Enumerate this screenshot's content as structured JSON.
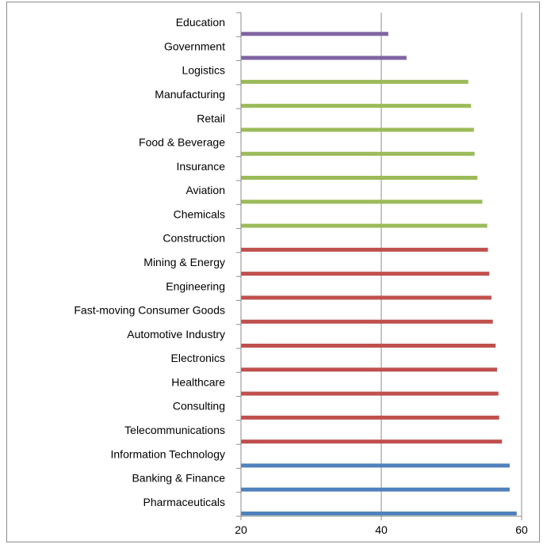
{
  "chart_data": {
    "type": "bar",
    "orientation": "horizontal",
    "title": "",
    "xlabel": "",
    "ylabel": "",
    "xlim": [
      20,
      60
    ],
    "x_ticks": [
      "20",
      "40",
      "60"
    ],
    "grid": "vertical lines at 40 and 60",
    "legend": "none",
    "categories": [
      "Education",
      "Government",
      "Logistics",
      "Manufacturing",
      "Retail",
      "Food & Beverage",
      "Insurance",
      "Aviation",
      "Chemicals",
      "Construction",
      "Mining & Energy",
      "Engineering",
      "Fast-moving Consumer Goods",
      "Automotive Industry",
      "Electronics",
      "Healthcare",
      "Consulting",
      "Telecommunications",
      "Information Technology",
      "Banking & Finance",
      "Pharmaceuticals"
    ],
    "values": [
      41.0,
      43.6,
      52.4,
      52.8,
      53.2,
      53.3,
      53.7,
      54.4,
      55.1,
      55.2,
      55.4,
      55.7,
      55.9,
      56.3,
      56.5,
      56.7,
      56.8,
      57.2,
      58.3,
      58.3,
      59.3
    ],
    "group_index": [
      0,
      0,
      1,
      1,
      1,
      1,
      1,
      1,
      1,
      2,
      2,
      2,
      2,
      2,
      2,
      2,
      2,
      2,
      3,
      3,
      3
    ],
    "group_colors": [
      "#8064a2",
      "#9bbb59",
      "#c0504d",
      "#4f81bd"
    ]
  }
}
